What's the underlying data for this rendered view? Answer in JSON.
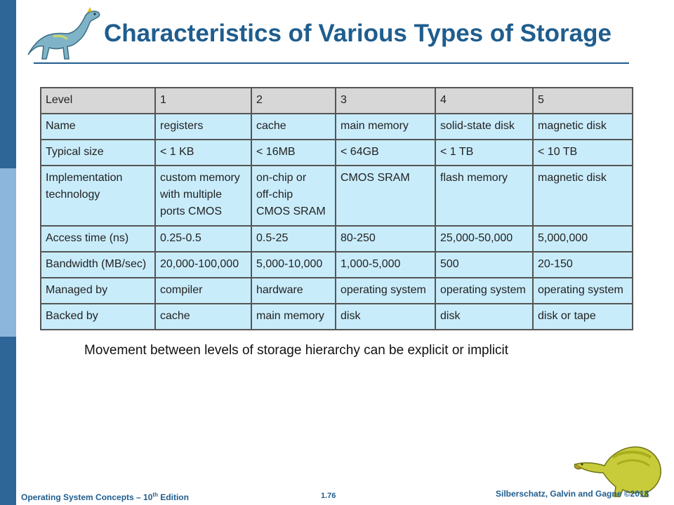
{
  "slide": {
    "title": "Characteristics of Various Types of Storage",
    "caption": "Movement between levels of storage hierarchy can be explicit or implicit"
  },
  "table": {
    "header": [
      "Level",
      "1",
      "2",
      "3",
      "4",
      "5"
    ],
    "rows": [
      [
        "Name",
        "registers",
        "cache",
        "main memory",
        "solid-state disk",
        "magnetic disk"
      ],
      [
        "Typical size",
        "< 1 KB",
        "< 16MB",
        "< 64GB",
        "< 1 TB",
        "< 10 TB"
      ],
      [
        "Implementation\ntechnology",
        " custom memory\n with multiple\n ports CMOS",
        " on-chip or\n off-chip\n CMOS SRAM",
        "CMOS SRAM",
        "flash memory",
        "magnetic disk"
      ],
      [
        "Access time (ns)",
        "0.25-0.5",
        "0.5-25",
        "80-250",
        "25,000-50,000",
        "5,000,000"
      ],
      [
        "Bandwidth (MB/sec)",
        "20,000-100,000",
        "5,000-10,000",
        "1,000-5,000",
        "500",
        "20-150"
      ],
      [
        "Managed by",
        "compiler",
        "hardware",
        "operating system",
        "operating system",
        "operating system"
      ],
      [
        "Backed by",
        "cache",
        "main memory",
        "disk",
        "disk",
        "disk or tape"
      ]
    ]
  },
  "footer": {
    "book_prefix": "Operating System Concepts – 10",
    "book_sup": "th",
    "book_suffix": " Edition",
    "page_number": "1.76",
    "copyright": "Silberschatz, Galvin and Gagne ©2018"
  },
  "colors": {
    "accent": "#1f5d8e",
    "sidebar": "#2f6698",
    "cell": "#c9ecfb",
    "header_cell": "#d7d7d7"
  },
  "icons": [
    "dinosaur-top-icon",
    "dinosaur-bottom-icon"
  ]
}
